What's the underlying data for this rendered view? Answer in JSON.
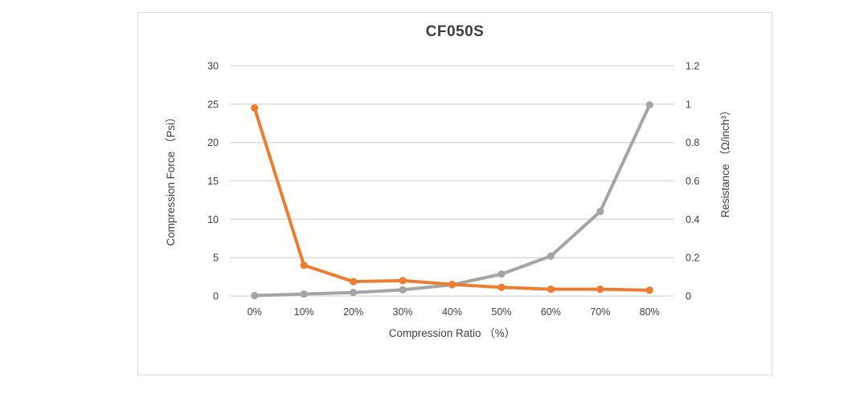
{
  "chart": {
    "title": "CF050S",
    "left_axis_title": "Compression Force （Psi）",
    "right_axis_title": "Resistance （Ω/inch³）",
    "x_axis_title": "Compression Ratio （%）"
  },
  "chart_data": {
    "type": "line",
    "title": "CF050S",
    "categories": [
      "0%",
      "10%",
      "20%",
      "30%",
      "40%",
      "50%",
      "60%",
      "70%",
      "80%"
    ],
    "xlabel": "Compression Ratio （%）",
    "ylabel_left": "Compression Force （Psi）",
    "ylabel_right": "Resistance （Ω/inch³）",
    "left_axis": {
      "range": [
        0,
        30
      ],
      "ticks": [
        0,
        5,
        10,
        15,
        20,
        25,
        30
      ],
      "tick_labels": [
        "0",
        "5",
        "10",
        "15",
        "20",
        "25",
        "30"
      ]
    },
    "right_axis": {
      "range": [
        0,
        1.2
      ],
      "ticks": [
        0,
        0.2,
        0.4,
        0.6,
        0.8,
        1,
        1.2
      ],
      "tick_labels": [
        "0",
        "0.2",
        "0.4",
        "0.6",
        "0.8",
        "1",
        "1.2"
      ]
    },
    "grid": true,
    "legend": "none",
    "series": [
      {
        "name": "Compression Force (Psi)",
        "axis": "left",
        "color": "#A5A5A5",
        "values": [
          0.05,
          0.25,
          0.45,
          0.8,
          1.45,
          2.85,
          5.2,
          11,
          24.9
        ]
      },
      {
        "name": "Resistance (Ω/inch³)",
        "axis": "right",
        "color": "#ED7D31",
        "values": [
          0.98,
          0.16,
          0.075,
          0.08,
          0.06,
          0.045,
          0.035,
          0.035,
          0.03
        ]
      }
    ],
    "colors": {
      "gridline": "#D9D9D9",
      "text": "#404040",
      "frame_border": "#D9D9D9",
      "orange": "#ED7D31",
      "gray": "#A5A5A5"
    }
  }
}
